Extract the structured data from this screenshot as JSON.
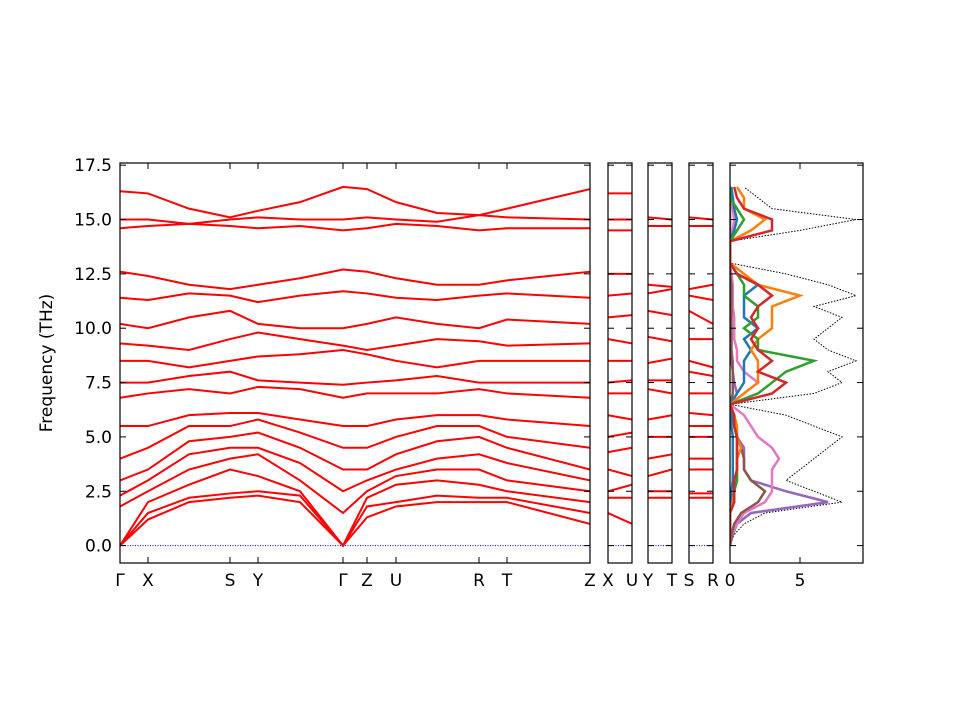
{
  "chart_data": [
    {
      "type": "line",
      "y_label": "Frequency (THz)",
      "color": "#ff0000",
      "hline": 0,
      "hline_color": "#0000cc",
      "ylim": [
        -0.8,
        17.6
      ],
      "yticks": [
        {
          "value": 0,
          "label": "0.0"
        },
        2.5,
        {
          "value": 5,
          "label": "5.0"
        },
        7.5,
        {
          "value": 10,
          "label": "10.0"
        },
        12.5,
        {
          "value": 15,
          "label": "15.0"
        },
        17.5
      ],
      "xlim": [
        0,
        470
      ],
      "xticks": [
        {
          "value": 0,
          "label": "Γ"
        },
        {
          "value": 28,
          "label": "X"
        },
        {
          "value": 110,
          "label": "S"
        },
        {
          "value": 138,
          "label": "Y"
        },
        {
          "value": 223,
          "label": "Γ"
        },
        {
          "value": 247,
          "label": "Z"
        },
        {
          "value": 276,
          "label": "U"
        },
        {
          "value": 359,
          "label": "R"
        },
        {
          "value": 387,
          "label": "T"
        },
        {
          "value": 470,
          "label": "Z"
        }
      ],
      "x": [
        0,
        28,
        69,
        110,
        138,
        180,
        223,
        247,
        276,
        317,
        359,
        387,
        470
      ],
      "series": [
        {
          "values": [
            0,
            1.2,
            2,
            2.2,
            2.3,
            2,
            0,
            1.3,
            1.8,
            2,
            2,
            2,
            1
          ]
        },
        {
          "values": [
            0,
            1.5,
            2.2,
            2.4,
            2.5,
            2.3,
            0,
            1.8,
            2,
            2.3,
            2.2,
            2.2,
            1.5
          ]
        },
        {
          "values": [
            0,
            2,
            2.8,
            3.5,
            3.2,
            2.5,
            0,
            2.2,
            2.8,
            3,
            2.8,
            2.5,
            2
          ]
        },
        {
          "values": [
            1.8,
            2.5,
            3.5,
            4,
            4.2,
            3,
            1.5,
            2.5,
            3.2,
            3.5,
            3.5,
            3,
            2.5
          ]
        },
        {
          "values": [
            2.3,
            3,
            4.2,
            4.5,
            4.5,
            3.8,
            2.5,
            3,
            3.5,
            4,
            4.2,
            3.8,
            3
          ]
        },
        {
          "values": [
            3,
            3.5,
            4.8,
            5,
            5.2,
            4.5,
            3.5,
            3.5,
            4.2,
            4.8,
            5,
            4.5,
            3.5
          ]
        },
        {
          "values": [
            4,
            4.5,
            5.5,
            5.5,
            5.8,
            5.2,
            4.5,
            4.5,
            5,
            5.5,
            5.5,
            5,
            4.5
          ]
        },
        {
          "values": [
            5.5,
            5.5,
            6,
            6.1,
            6.1,
            5.8,
            5.5,
            5.5,
            5.8,
            6,
            6,
            5.8,
            5.5
          ]
        },
        {
          "values": [
            6.8,
            7,
            7.2,
            7,
            7.3,
            7.2,
            6.8,
            7,
            7,
            7,
            7.2,
            7,
            6.8
          ]
        },
        {
          "values": [
            7.5,
            7.5,
            7.8,
            8,
            7.6,
            7.5,
            7.4,
            7.5,
            7.6,
            7.8,
            7.5,
            7.5,
            7.5
          ]
        },
        {
          "values": [
            8.5,
            8.5,
            8.2,
            8.5,
            8.7,
            8.8,
            9,
            8.8,
            8.5,
            8.2,
            8.5,
            8.5,
            8.5
          ]
        },
        {
          "values": [
            9.3,
            9.2,
            9,
            9.5,
            9.8,
            9.5,
            9.2,
            9,
            9.2,
            9.5,
            9.4,
            9.2,
            9.3
          ]
        },
        {
          "values": [
            10.2,
            10,
            10.5,
            10.8,
            10.2,
            10,
            10,
            10.2,
            10.5,
            10.2,
            10,
            10.4,
            10.2
          ]
        },
        {
          "values": [
            11.4,
            11.3,
            11.6,
            11.5,
            11.2,
            11.5,
            11.7,
            11.6,
            11.4,
            11.3,
            11.5,
            11.6,
            11.4
          ]
        },
        {
          "values": [
            12.6,
            12.4,
            12,
            11.8,
            12,
            12.3,
            12.7,
            12.6,
            12.3,
            12,
            12,
            12.2,
            12.6
          ]
        },
        {
          "values": [
            14.6,
            14.7,
            14.8,
            14.7,
            14.6,
            14.7,
            14.5,
            14.6,
            14.8,
            14.7,
            14.5,
            14.6,
            14.6
          ]
        },
        {
          "values": [
            15,
            15,
            14.8,
            15,
            15.1,
            15,
            15,
            15.1,
            15,
            14.9,
            15.2,
            15.1,
            15
          ]
        },
        {
          "values": [
            16.3,
            16.2,
            15.5,
            15.1,
            15.4,
            15.8,
            16.5,
            16.4,
            15.8,
            15.3,
            15.2,
            15.5,
            16.4
          ]
        }
      ]
    },
    {
      "type": "line",
      "color": "#ff0000",
      "xlim": [
        0,
        24
      ],
      "xticks": [
        {
          "value": 0,
          "label": "X"
        },
        {
          "value": 24,
          "label": "U"
        }
      ],
      "x": [
        0,
        24
      ],
      "series": [
        {
          "values": [
            1.5,
            1
          ]
        },
        {
          "values": [
            2.2,
            2.2
          ]
        },
        {
          "values": [
            2.5,
            2.8
          ]
        },
        {
          "values": [
            3.5,
            3.2
          ]
        },
        {
          "values": [
            4.3,
            4.5
          ]
        },
        {
          "values": [
            5,
            5.2
          ]
        },
        {
          "values": [
            6,
            5.8
          ]
        },
        {
          "values": [
            7,
            7
          ]
        },
        {
          "values": [
            7.5,
            7.6
          ]
        },
        {
          "values": [
            8.5,
            8.5
          ]
        },
        {
          "values": [
            9.5,
            9.3
          ]
        },
        {
          "values": [
            10.5,
            10.6
          ]
        },
        {
          "values": [
            11.5,
            11.6
          ]
        },
        {
          "values": [
            12.5,
            12.5
          ]
        },
        {
          "values": [
            14.5,
            14.5
          ]
        },
        {
          "values": [
            15,
            15
          ]
        },
        {
          "values": [
            16.2,
            16.2
          ]
        }
      ]
    },
    {
      "type": "line",
      "color": "#ff0000",
      "xlim": [
        0,
        24
      ],
      "xticks": [
        {
          "value": 0,
          "label": "Y"
        },
        {
          "value": 24,
          "label": "T"
        }
      ],
      "x": [
        0,
        24
      ],
      "series": [
        {
          "values": [
            2.2,
            2.2
          ]
        },
        {
          "values": [
            2.5,
            2.5
          ]
        },
        {
          "values": [
            3.2,
            3.5
          ]
        },
        {
          "values": [
            4,
            4.2
          ]
        },
        {
          "values": [
            5,
            5
          ]
        },
        {
          "values": [
            5.8,
            6
          ]
        },
        {
          "values": [
            7.2,
            7
          ]
        },
        {
          "values": [
            7.6,
            7.6
          ]
        },
        {
          "values": [
            8.4,
            8.6
          ]
        },
        {
          "values": [
            9.6,
            9.4
          ]
        },
        {
          "values": [
            10.8,
            10.6
          ]
        },
        {
          "values": [
            11.6,
            11.8
          ]
        },
        {
          "values": [
            12,
            11.9
          ]
        },
        {
          "values": [
            14.7,
            14.7
          ]
        },
        {
          "values": [
            15.1,
            15
          ]
        }
      ]
    },
    {
      "type": "line",
      "color": "#ff0000",
      "xlim": [
        0,
        24
      ],
      "xticks": [
        {
          "value": 0,
          "label": "S"
        },
        {
          "value": 24,
          "label": "R"
        }
      ],
      "x": [
        0,
        24
      ],
      "series": [
        {
          "values": [
            2.2,
            2.2
          ]
        },
        {
          "values": [
            2.4,
            2.4
          ]
        },
        {
          "values": [
            3.5,
            3.5
          ]
        },
        {
          "values": [
            4,
            4
          ]
        },
        {
          "values": [
            5,
            5
          ]
        },
        {
          "values": [
            5.5,
            5.5
          ]
        },
        {
          "values": [
            6.1,
            6
          ]
        },
        {
          "values": [
            7,
            7
          ]
        },
        {
          "values": [
            8,
            7.8
          ]
        },
        {
          "values": [
            8.5,
            8.2
          ]
        },
        {
          "values": [
            9.5,
            9.5
          ]
        },
        {
          "values": [
            10.8,
            10.2
          ]
        },
        {
          "values": [
            11.5,
            11.3
          ]
        },
        {
          "values": [
            11.8,
            12
          ]
        },
        {
          "values": [
            14.7,
            14.7
          ]
        },
        {
          "values": [
            15.1,
            15
          ]
        }
      ]
    },
    {
      "type": "dos",
      "xlim": [
        0,
        9.5
      ],
      "xticks": [
        0,
        5
      ],
      "freq": [
        0,
        0.5,
        1,
        1.5,
        2,
        2.5,
        3,
        3.5,
        4,
        4.5,
        5,
        5.5,
        6,
        6.5,
        7,
        7.5,
        8,
        8.5,
        9,
        9.5,
        10,
        10.5,
        11,
        11.5,
        12,
        12.5,
        13,
        13.5,
        14,
        14.5,
        15,
        15.5,
        16,
        16.5
      ],
      "series": [
        {
          "color": "#000000",
          "linestyle": "dotted",
          "values": [
            0,
            0.3,
            1,
            2.5,
            8,
            6,
            4,
            5,
            6,
            7,
            8,
            6,
            4,
            0,
            6,
            8,
            7,
            9,
            7,
            6,
            7,
            8,
            6,
            9,
            7,
            4,
            0,
            0,
            0,
            5,
            9,
            3,
            2,
            1
          ]
        },
        {
          "color": "#9467bd",
          "values": [
            0,
            0.2,
            0.5,
            1.5,
            7,
            4,
            1.5,
            1,
            1,
            1,
            0.5,
            0.3,
            0.2,
            0,
            0.5,
            0.3,
            0.2,
            0.2,
            0.1,
            0.1,
            0.1,
            0.1,
            0.1,
            0.1,
            0.1,
            0,
            0,
            0,
            0,
            0,
            0,
            0,
            0,
            0
          ]
        },
        {
          "color": "#e377c2",
          "values": [
            0,
            0.1,
            0.5,
            1,
            2.5,
            3,
            3,
            3,
            3.5,
            3,
            2,
            1.5,
            1,
            0,
            1,
            2,
            1,
            0.5,
            0.5,
            0.3,
            0.3,
            0.3,
            0.2,
            0.2,
            0.2,
            0.1,
            0,
            0,
            0,
            0.2,
            0.3,
            0.2,
            0.1,
            0
          ]
        },
        {
          "color": "#8c564b",
          "values": [
            0,
            0.1,
            0.3,
            0.8,
            2,
            2.5,
            1.5,
            1,
            1,
            0.8,
            0.5,
            0.3,
            0.2,
            0,
            0.2,
            0.2,
            0.2,
            0.1,
            0.1,
            0.1,
            0.1,
            0.1,
            0.1,
            0.1,
            0.1,
            0,
            0,
            0,
            0,
            0,
            0,
            0,
            0,
            0
          ]
        },
        {
          "color": "#1f77b4",
          "values": [
            0,
            0,
            0,
            0,
            0.1,
            0.1,
            0.2,
            0.2,
            0.2,
            0.2,
            0.2,
            0.1,
            0.1,
            0,
            0.5,
            1,
            1,
            1,
            1.5,
            1,
            2,
            1,
            1,
            1,
            2,
            0.5,
            0,
            0,
            0,
            0.3,
            0.5,
            0.3,
            0.2,
            0.1
          ]
        },
        {
          "color": "#ff7f0e",
          "values": [
            0,
            0,
            0,
            0,
            0.2,
            0.3,
            0.5,
            0.5,
            0.5,
            0.8,
            0.5,
            0.5,
            0.3,
            0,
            1,
            2,
            2,
            2,
            1.5,
            2,
            3,
            3,
            3,
            5,
            2,
            1,
            0,
            0,
            0,
            1.5,
            2.5,
            1,
            1,
            0.5
          ]
        },
        {
          "color": "#2ca02c",
          "values": [
            0,
            0,
            0,
            0,
            0.3,
            0.3,
            0.5,
            0.5,
            0.5,
            0.5,
            0.5,
            0.3,
            0.3,
            0,
            2,
            3,
            4,
            6,
            2,
            2,
            1,
            2,
            2,
            1,
            1,
            0.5,
            0,
            0,
            0,
            0.5,
            1,
            0.5,
            0,
            0
          ]
        },
        {
          "color": "#d62728",
          "values": [
            0,
            0,
            0,
            0,
            0.3,
            0.3,
            0.3,
            0.5,
            0.5,
            0.5,
            0.5,
            0.3,
            0.3,
            0,
            3,
            4,
            2,
            3,
            2,
            1.5,
            2,
            1.5,
            2,
            3,
            2,
            0.5,
            0,
            0,
            0,
            3,
            3,
            1,
            0.5,
            0.3
          ]
        }
      ]
    }
  ]
}
